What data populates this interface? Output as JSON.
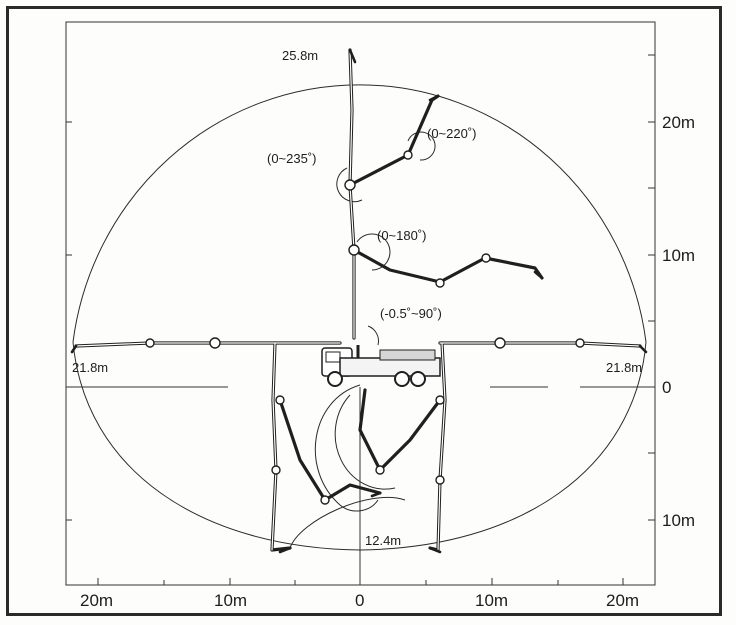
{
  "diagram": {
    "x_axis_labels": [
      "20m",
      "10m",
      "0",
      "10m",
      "20m"
    ],
    "y_axis_labels": [
      "20m",
      "10m",
      "0",
      "10m"
    ],
    "dimensions": {
      "top_reach": "25.8m",
      "left_reach": "21.8m",
      "right_reach": "21.8m",
      "bottom_reach": "12.4m"
    },
    "angles": {
      "joint4": "(0~220˚)",
      "joint3": "(0~235˚)",
      "joint2": "(0~180˚)",
      "joint1": "(-0.5˚~90˚)"
    },
    "colors": {
      "line": "#2b2b2b",
      "boom_fill": "#ffffff",
      "boom_stroke": "#1f1f1f"
    }
  }
}
